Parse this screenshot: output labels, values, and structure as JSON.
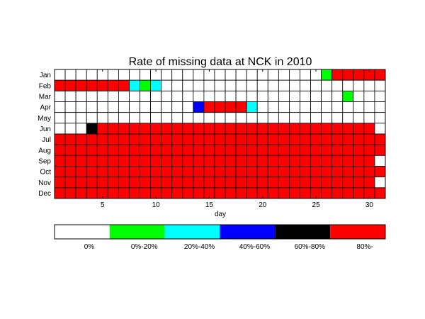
{
  "chart_data": {
    "type": "heatmap",
    "title": "Rate of missing data at NCK in 2010",
    "xlabel": "day",
    "ylabel": "",
    "xlim": [
      1,
      31
    ],
    "x_ticks": [
      5,
      10,
      15,
      20,
      25,
      30
    ],
    "rows": [
      "Jan",
      "Feb",
      "Mar",
      "Apr",
      "May",
      "Jun",
      "Jul",
      "Aug",
      "Sep",
      "Oct",
      "Nov",
      "Dec"
    ],
    "grid": true,
    "legend_position": "bottom",
    "legend": [
      {
        "label": "0%",
        "color": "#ffffff"
      },
      {
        "label": "0%-20%",
        "color": "#00ff00"
      },
      {
        "label": "20%-40%",
        "color": "#00ffff"
      },
      {
        "label": "40%-60%",
        "color": "#0000ff"
      },
      {
        "label": "60%-80%",
        "color": "#000000"
      },
      {
        "label": "80%-",
        "color": "#ff0000"
      }
    ],
    "values": [
      [
        0,
        0,
        0,
        0,
        0,
        0,
        0,
        0,
        0,
        0,
        0,
        0,
        0,
        0,
        0,
        0,
        0,
        0,
        0,
        0,
        0,
        0,
        0,
        0,
        0,
        1,
        5,
        5,
        5,
        5,
        5
      ],
      [
        5,
        5,
        5,
        5,
        5,
        5,
        5,
        2,
        1,
        2,
        0,
        0,
        0,
        0,
        0,
        0,
        0,
        0,
        0,
        0,
        0,
        0,
        0,
        0,
        0,
        0,
        0,
        0,
        0,
        0,
        0
      ],
      [
        0,
        0,
        0,
        0,
        0,
        0,
        0,
        0,
        0,
        0,
        0,
        0,
        0,
        0,
        0,
        0,
        0,
        0,
        0,
        0,
        0,
        0,
        0,
        0,
        0,
        0,
        0,
        1,
        0,
        0,
        0
      ],
      [
        0,
        0,
        0,
        0,
        0,
        0,
        0,
        0,
        0,
        0,
        0,
        0,
        0,
        3,
        5,
        5,
        5,
        5,
        2,
        0,
        0,
        0,
        0,
        0,
        0,
        0,
        0,
        0,
        0,
        0,
        0
      ],
      [
        0,
        0,
        0,
        0,
        0,
        0,
        0,
        0,
        0,
        0,
        0,
        0,
        0,
        0,
        0,
        0,
        0,
        0,
        0,
        0,
        0,
        0,
        0,
        0,
        0,
        0,
        0,
        0,
        0,
        0,
        0
      ],
      [
        0,
        0,
        0,
        4,
        5,
        5,
        5,
        5,
        5,
        5,
        5,
        5,
        5,
        5,
        5,
        5,
        5,
        5,
        5,
        5,
        5,
        5,
        5,
        5,
        5,
        5,
        5,
        5,
        5,
        5,
        0
      ],
      [
        5,
        5,
        5,
        5,
        5,
        5,
        5,
        5,
        5,
        5,
        5,
        5,
        5,
        5,
        5,
        5,
        5,
        5,
        5,
        5,
        5,
        5,
        5,
        5,
        5,
        5,
        5,
        5,
        5,
        5,
        5
      ],
      [
        5,
        5,
        5,
        5,
        5,
        5,
        5,
        5,
        5,
        5,
        5,
        5,
        5,
        5,
        5,
        5,
        5,
        5,
        5,
        5,
        5,
        5,
        5,
        5,
        5,
        5,
        5,
        5,
        5,
        5,
        5
      ],
      [
        5,
        5,
        5,
        5,
        5,
        5,
        5,
        5,
        5,
        5,
        5,
        5,
        5,
        5,
        5,
        5,
        5,
        5,
        5,
        5,
        5,
        5,
        5,
        5,
        5,
        5,
        5,
        5,
        5,
        5,
        0
      ],
      [
        5,
        5,
        5,
        5,
        5,
        5,
        5,
        5,
        5,
        5,
        5,
        5,
        5,
        5,
        5,
        5,
        5,
        5,
        5,
        5,
        5,
        5,
        5,
        5,
        5,
        5,
        5,
        5,
        5,
        5,
        5
      ],
      [
        5,
        5,
        5,
        5,
        5,
        5,
        5,
        5,
        5,
        5,
        5,
        5,
        5,
        5,
        5,
        5,
        5,
        5,
        5,
        5,
        5,
        5,
        5,
        5,
        5,
        5,
        5,
        5,
        5,
        5,
        0
      ],
      [
        5,
        5,
        5,
        5,
        5,
        5,
        5,
        5,
        5,
        5,
        5,
        5,
        5,
        5,
        5,
        5,
        5,
        5,
        5,
        5,
        5,
        5,
        5,
        5,
        5,
        5,
        5,
        5,
        5,
        5,
        5
      ]
    ]
  }
}
